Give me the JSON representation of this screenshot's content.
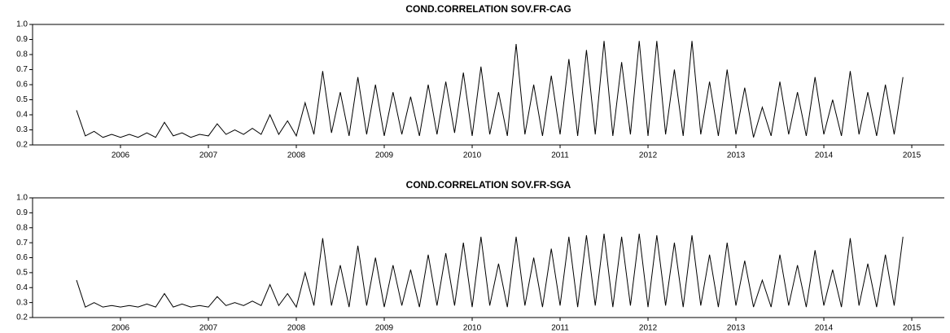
{
  "chart_data": [
    {
      "type": "line",
      "title": "COND.CORRELATION SOV.FR-CAG",
      "color": "#000000",
      "x": [
        2005.5,
        2005.6,
        2005.7,
        2005.8,
        2005.9,
        2006.0,
        2006.1,
        2006.2,
        2006.3,
        2006.4,
        2006.5,
        2006.6,
        2006.7,
        2006.8,
        2006.9,
        2007.0,
        2007.1,
        2007.2,
        2007.3,
        2007.4,
        2007.5,
        2007.6,
        2007.7,
        2007.8,
        2007.9,
        2008.0,
        2008.1,
        2008.2,
        2008.3,
        2008.4,
        2008.5,
        2008.6,
        2008.7,
        2008.8,
        2008.9,
        2009.0,
        2009.1,
        2009.2,
        2009.3,
        2009.4,
        2009.5,
        2009.6,
        2009.7,
        2009.8,
        2009.9,
        2010.0,
        2010.1,
        2010.2,
        2010.3,
        2010.4,
        2010.5,
        2010.6,
        2010.7,
        2010.8,
        2010.9,
        2011.0,
        2011.1,
        2011.2,
        2011.3,
        2011.4,
        2011.5,
        2011.6,
        2011.7,
        2011.8,
        2011.9,
        2012.0,
        2012.1,
        2012.2,
        2012.3,
        2012.4,
        2012.5,
        2012.6,
        2012.7,
        2012.8,
        2012.9,
        2013.0,
        2013.1,
        2013.2,
        2013.3,
        2013.4,
        2013.5,
        2013.6,
        2013.7,
        2013.8,
        2013.9,
        2014.0,
        2014.1,
        2014.2,
        2014.3,
        2014.4,
        2014.5,
        2014.6,
        2014.7,
        2014.8,
        2014.9
      ],
      "values": [
        0.43,
        0.26,
        0.29,
        0.25,
        0.27,
        0.25,
        0.27,
        0.25,
        0.28,
        0.25,
        0.35,
        0.26,
        0.28,
        0.25,
        0.27,
        0.26,
        0.34,
        0.27,
        0.3,
        0.27,
        0.31,
        0.27,
        0.4,
        0.27,
        0.36,
        0.26,
        0.48,
        0.27,
        0.69,
        0.28,
        0.55,
        0.26,
        0.65,
        0.27,
        0.6,
        0.26,
        0.55,
        0.27,
        0.52,
        0.26,
        0.6,
        0.27,
        0.62,
        0.28,
        0.68,
        0.26,
        0.72,
        0.27,
        0.55,
        0.26,
        0.87,
        0.27,
        0.6,
        0.26,
        0.66,
        0.27,
        0.77,
        0.26,
        0.83,
        0.27,
        0.89,
        0.26,
        0.75,
        0.27,
        0.89,
        0.26,
        0.89,
        0.27,
        0.7,
        0.26,
        0.89,
        0.27,
        0.62,
        0.26,
        0.7,
        0.27,
        0.58,
        0.25,
        0.45,
        0.26,
        0.62,
        0.27,
        0.55,
        0.26,
        0.65,
        0.27,
        0.5,
        0.26,
        0.69,
        0.27,
        0.55,
        0.26,
        0.6,
        0.27,
        0.65
      ],
      "xlim": [
        2005.0,
        2015.37
      ],
      "xticks": [
        2006,
        2007,
        2008,
        2009,
        2010,
        2011,
        2012,
        2013,
        2014,
        2015
      ],
      "ylim": [
        0.2,
        1.0
      ],
      "yticks": [
        0.2,
        0.3,
        0.4,
        0.5,
        0.6,
        0.7,
        0.8,
        0.9,
        {
          "value": 1.0,
          "label": "1.0"
        }
      ]
    },
    {
      "type": "line",
      "title": "COND.CORRELATION SOV.FR-SGA",
      "color": "#000000",
      "x": [
        2005.5,
        2005.6,
        2005.7,
        2005.8,
        2005.9,
        2006.0,
        2006.1,
        2006.2,
        2006.3,
        2006.4,
        2006.5,
        2006.6,
        2006.7,
        2006.8,
        2006.9,
        2007.0,
        2007.1,
        2007.2,
        2007.3,
        2007.4,
        2007.5,
        2007.6,
        2007.7,
        2007.8,
        2007.9,
        2008.0,
        2008.1,
        2008.2,
        2008.3,
        2008.4,
        2008.5,
        2008.6,
        2008.7,
        2008.8,
        2008.9,
        2009.0,
        2009.1,
        2009.2,
        2009.3,
        2009.4,
        2009.5,
        2009.6,
        2009.7,
        2009.8,
        2009.9,
        2010.0,
        2010.1,
        2010.2,
        2010.3,
        2010.4,
        2010.5,
        2010.6,
        2010.7,
        2010.8,
        2010.9,
        2011.0,
        2011.1,
        2011.2,
        2011.3,
        2011.4,
        2011.5,
        2011.6,
        2011.7,
        2011.8,
        2011.9,
        2012.0,
        2012.1,
        2012.2,
        2012.3,
        2012.4,
        2012.5,
        2012.6,
        2012.7,
        2012.8,
        2012.9,
        2013.0,
        2013.1,
        2013.2,
        2013.3,
        2013.4,
        2013.5,
        2013.6,
        2013.7,
        2013.8,
        2013.9,
        2014.0,
        2014.1,
        2014.2,
        2014.3,
        2014.4,
        2014.5,
        2014.6,
        2014.7,
        2014.8,
        2014.9
      ],
      "values": [
        0.45,
        0.27,
        0.3,
        0.27,
        0.28,
        0.27,
        0.28,
        0.27,
        0.29,
        0.27,
        0.36,
        0.27,
        0.29,
        0.27,
        0.28,
        0.27,
        0.34,
        0.28,
        0.3,
        0.28,
        0.31,
        0.28,
        0.42,
        0.28,
        0.36,
        0.27,
        0.5,
        0.28,
        0.73,
        0.28,
        0.55,
        0.27,
        0.68,
        0.28,
        0.6,
        0.27,
        0.55,
        0.28,
        0.52,
        0.27,
        0.62,
        0.28,
        0.63,
        0.28,
        0.7,
        0.27,
        0.74,
        0.28,
        0.56,
        0.27,
        0.74,
        0.28,
        0.6,
        0.27,
        0.66,
        0.28,
        0.74,
        0.27,
        0.75,
        0.28,
        0.76,
        0.27,
        0.74,
        0.28,
        0.76,
        0.27,
        0.75,
        0.28,
        0.7,
        0.27,
        0.75,
        0.28,
        0.62,
        0.27,
        0.7,
        0.28,
        0.58,
        0.27,
        0.45,
        0.27,
        0.62,
        0.28,
        0.55,
        0.27,
        0.65,
        0.28,
        0.52,
        0.27,
        0.73,
        0.28,
        0.56,
        0.27,
        0.62,
        0.28,
        0.74
      ],
      "xlim": [
        2005.0,
        2015.37
      ],
      "xticks": [
        2006,
        2007,
        2008,
        2009,
        2010,
        2011,
        2012,
        2013,
        2014,
        2015
      ],
      "ylim": [
        0.2,
        1.0
      ],
      "yticks": [
        0.2,
        0.3,
        0.4,
        0.5,
        0.6,
        0.7,
        0.8,
        0.9,
        {
          "value": 1.0,
          "label": "1.0"
        }
      ]
    }
  ]
}
